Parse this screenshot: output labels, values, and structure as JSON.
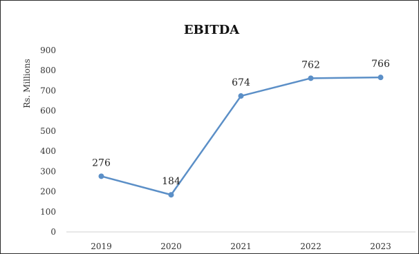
{
  "chart_data": {
    "type": "line",
    "title": "EBITDA",
    "ylabel": "Rs. Millions",
    "xlabel": "",
    "categories": [
      "2019",
      "2020",
      "2021",
      "2022",
      "2023"
    ],
    "series": [
      {
        "values": [
          276,
          184,
          674,
          762,
          766
        ],
        "color": "#5b8fc7"
      }
    ],
    "ylim": [
      0,
      900
    ],
    "yticks": [
      0,
      100,
      200,
      300,
      400,
      500,
      600,
      700,
      800,
      900
    ],
    "data_labels": [
      "276",
      "184",
      "674",
      "762",
      "766"
    ],
    "grid": false,
    "legend": "none"
  }
}
